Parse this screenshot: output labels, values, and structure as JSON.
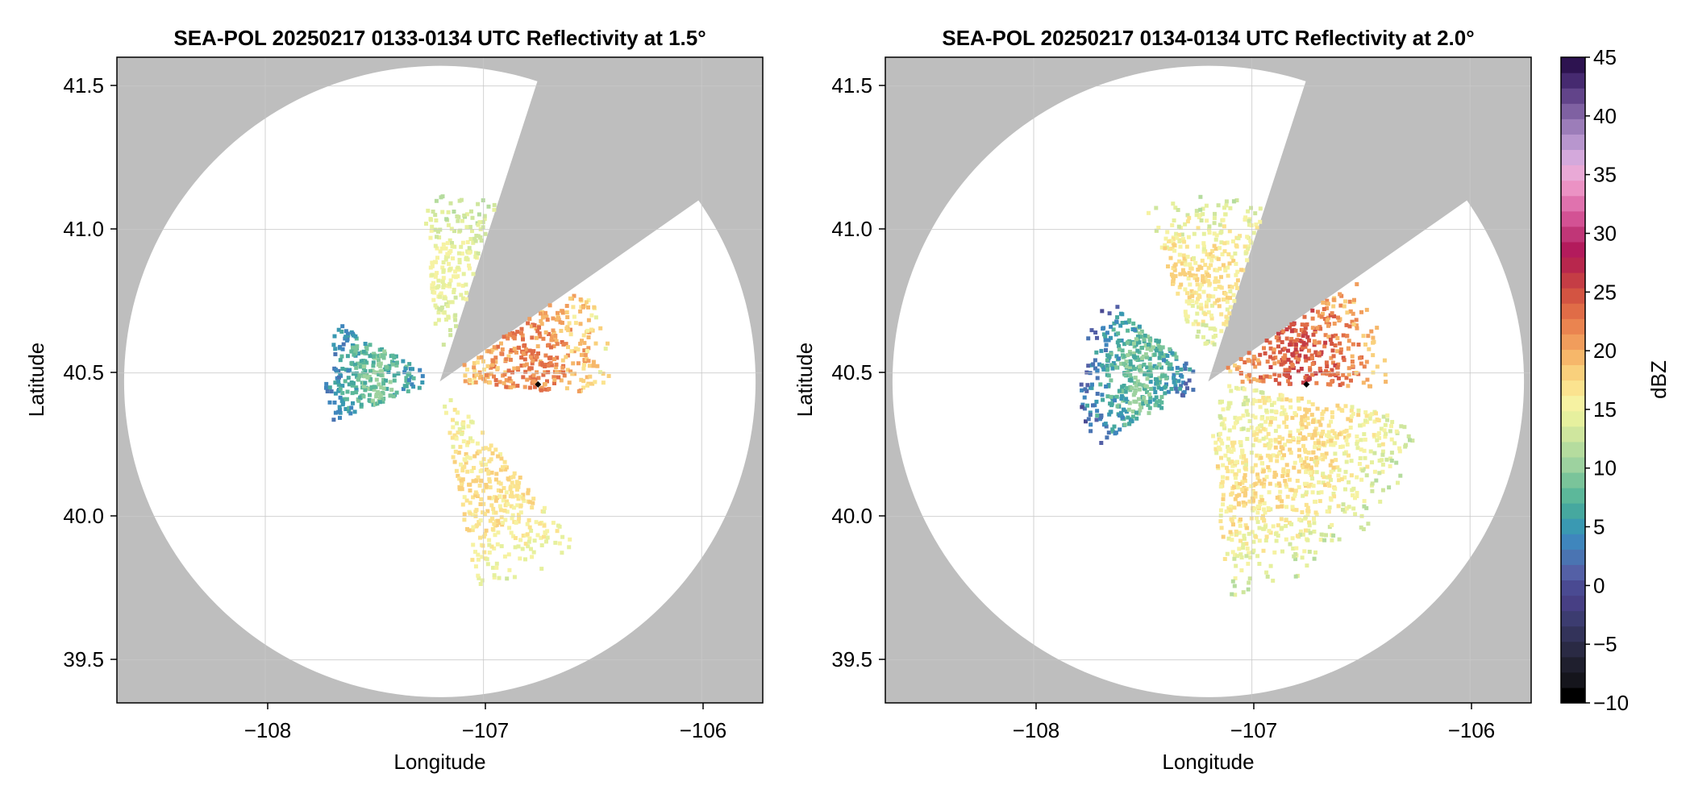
{
  "colors": {
    "outside_range": "#bebebe",
    "inside_range": "#ffffff",
    "grid": "#c8c8c8",
    "marker": "#000000"
  },
  "colorbar": {
    "label": "dBZ",
    "ticks": [
      "45",
      "40",
      "35",
      "30",
      "25",
      "20",
      "15",
      "10",
      "5",
      "0",
      "−5",
      "−10"
    ],
    "colors": [
      "#000000",
      "#15151c",
      "#1f1f2e",
      "#2a2a44",
      "#33335a",
      "#3c3c70",
      "#473f84",
      "#4a4a92",
      "#5460a6",
      "#4a74b2",
      "#3f86bd",
      "#3a99b2",
      "#46a89f",
      "#5cb89a",
      "#7ac49a",
      "#9dd29f",
      "#b5dc9e",
      "#cfe69e",
      "#e6f09e",
      "#f6f2a2",
      "#fbe38f",
      "#f9d07c",
      "#f6b76a",
      "#f19d5c",
      "#ea8450",
      "#e06c47",
      "#d35442",
      "#c53d45",
      "#b8274d",
      "#b31b5c",
      "#c03677",
      "#d35294",
      "#e072ae",
      "#eb92c4",
      "#e9a9d6",
      "#d4a9dc",
      "#b896ce",
      "#9c7db9",
      "#7f61a2",
      "#62448a",
      "#462a70",
      "#2d1350"
    ]
  },
  "panels": [
    {
      "title": "SEA-POL 20250217 0133-0134 UTC Reflectivity at 1.5°",
      "xlabel": "Longitude",
      "ylabel": "Latitude",
      "xticks": [
        "−108",
        "−107",
        "−106"
      ],
      "yticks": [
        "41.5",
        "41.0",
        "40.5",
        "40.0",
        "39.5"
      ]
    },
    {
      "title": "SEA-POL 20250217 0134-0134 UTC Reflectivity at 2.0°",
      "xlabel": "Longitude",
      "ylabel": "Latitude",
      "xticks": [
        "−108",
        "−107",
        "−106"
      ],
      "yticks": [
        "41.5",
        "41.0",
        "40.5",
        "40.0",
        "39.5"
      ]
    }
  ],
  "chart_data": [
    {
      "type": "heatmap",
      "title": "SEA-POL 20250217 0133-0134 UTC Reflectivity at 1.5°",
      "xlabel": "Longitude",
      "ylabel": "Latitude",
      "xlim": [
        -108.68,
        -105.72
      ],
      "ylim": [
        39.35,
        41.6
      ],
      "xticks": [
        -108,
        -107,
        -106
      ],
      "yticks": [
        39.5,
        40.0,
        40.5,
        41.0,
        41.5
      ],
      "grid": true,
      "colorbar": {
        "label": "dBZ",
        "range": [
          -10,
          45
        ],
        "tick_step": 5
      },
      "radar_site": {
        "lon": -107.2,
        "lat": 40.47
      },
      "range_ring_radius_deg_lat": 1.1,
      "blocked_sectors_azimuth_deg": [
        [
          18,
          55
        ]
      ],
      "echo_regions": [
        {
          "description": "NE sector",
          "az_range": [
            55,
            95
          ],
          "range_deg": [
            0.05,
            0.6
          ],
          "dbz": [
            12,
            24
          ]
        },
        {
          "description": "SE sector",
          "az_range": [
            140,
            170
          ],
          "range_deg": [
            0.05,
            0.75
          ],
          "dbz": [
            12,
            18
          ]
        },
        {
          "description": "W sector",
          "az_range": [
            250,
            300
          ],
          "range_deg": [
            0.05,
            0.4
          ],
          "dbz": [
            0,
            10
          ]
        },
        {
          "description": "N sector",
          "az_range": [
            355,
            18
          ],
          "range_deg": [
            0.1,
            0.65
          ],
          "dbz": [
            10,
            16
          ]
        }
      ],
      "markers": [
        {
          "lon": -106.75,
          "lat": 40.46
        }
      ]
    },
    {
      "type": "heatmap",
      "title": "SEA-POL 20250217 0134-0134 UTC Reflectivity at 2.0°",
      "xlabel": "Longitude",
      "ylabel": "Latitude",
      "xlim": [
        -108.68,
        -105.72
      ],
      "ylim": [
        39.35,
        41.6
      ],
      "xticks": [
        -108,
        -107,
        -106
      ],
      "yticks": [
        39.5,
        40.0,
        40.5,
        41.0,
        41.5
      ],
      "grid": true,
      "colorbar": {
        "label": "dBZ",
        "range": [
          -10,
          45
        ],
        "tick_step": 5
      },
      "radar_site": {
        "lon": -107.2,
        "lat": 40.47
      },
      "range_ring_radius_deg_lat": 1.1,
      "blocked_sectors_azimuth_deg": [
        [
          18,
          55
        ]
      ],
      "echo_regions": [
        {
          "description": "NE sector",
          "az_range": [
            55,
            92
          ],
          "range_deg": [
            0.05,
            0.62
          ],
          "dbz": [
            14,
            26
          ]
        },
        {
          "description": "SE sector",
          "az_range": [
            100,
            175
          ],
          "range_deg": [
            0.05,
            0.75
          ],
          "dbz": [
            10,
            18
          ]
        },
        {
          "description": "W sector",
          "az_range": [
            240,
            310
          ],
          "range_deg": [
            0.05,
            0.45
          ],
          "dbz": [
            -2,
            10
          ]
        },
        {
          "description": "N sector",
          "az_range": [
            340,
            18
          ],
          "range_deg": [
            0.1,
            0.65
          ],
          "dbz": [
            10,
            18
          ]
        }
      ],
      "markers": [
        {
          "lon": -106.75,
          "lat": 40.46
        }
      ]
    }
  ]
}
